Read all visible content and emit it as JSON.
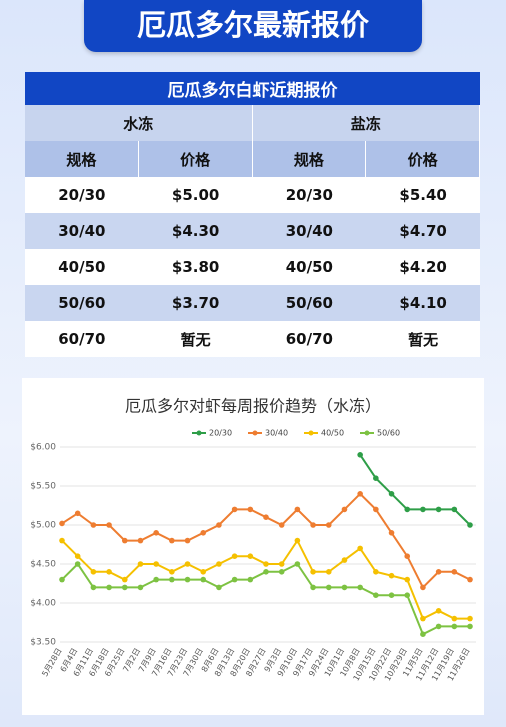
{
  "header": {
    "title": "厄瓜多尔最新报价"
  },
  "table": {
    "title": "厄瓜多尔白虾近期报价",
    "groups": [
      "水冻",
      "盐冻"
    ],
    "columns": [
      "规格",
      "价格",
      "规格",
      "价格"
    ],
    "rows": [
      [
        "20/30",
        "$5.00",
        "20/30",
        "$5.40"
      ],
      [
        "30/40",
        "$4.30",
        "30/40",
        "$4.70"
      ],
      [
        "40/50",
        "$3.80",
        "40/50",
        "$4.20"
      ],
      [
        "50/60",
        "$3.70",
        "50/60",
        "$4.10"
      ],
      [
        "60/70",
        "暂无",
        "60/70",
        "暂无"
      ]
    ]
  },
  "chart_data": {
    "type": "line",
    "title": "厄瓜多尔对虾每周报价趋势（水冻）",
    "categories": [
      "5月28日",
      "6月4日",
      "6月11日",
      "6月18日",
      "6月25日",
      "7月2日",
      "7月9日",
      "7月16日",
      "7月23日",
      "7月30日",
      "8月6日",
      "8月13日",
      "8月20日",
      "8月27日",
      "9月3日",
      "9月10日",
      "9月17日",
      "9月24日",
      "10月1日",
      "10月8日",
      "10月15日",
      "10月22日",
      "10月29日",
      "11月5日",
      "11月12日",
      "11月19日",
      "11月26日"
    ],
    "series": [
      {
        "name": "20/30",
        "color": "#2e9e48",
        "values": [
          null,
          null,
          null,
          null,
          null,
          null,
          null,
          null,
          null,
          null,
          null,
          null,
          null,
          null,
          null,
          null,
          null,
          null,
          null,
          5.9,
          5.6,
          5.4,
          5.2,
          5.2,
          5.2,
          5.2,
          5.0
        ]
      },
      {
        "name": "30/40",
        "color": "#ee7d31",
        "values": [
          5.02,
          5.15,
          5.0,
          5.0,
          4.8,
          4.8,
          4.9,
          4.8,
          4.8,
          4.9,
          5.0,
          5.2,
          5.2,
          5.1,
          5.0,
          5.2,
          5.0,
          5.0,
          5.2,
          5.4,
          5.2,
          4.9,
          4.6,
          4.2,
          4.4,
          4.4,
          4.3
        ]
      },
      {
        "name": "40/50",
        "color": "#f5c000",
        "values": [
          4.8,
          4.6,
          4.4,
          4.4,
          4.3,
          4.5,
          4.5,
          4.4,
          4.5,
          4.4,
          4.5,
          4.6,
          4.6,
          4.5,
          4.5,
          4.8,
          4.4,
          4.4,
          4.55,
          4.7,
          4.4,
          4.35,
          4.3,
          3.8,
          3.9,
          3.8,
          3.8
        ]
      },
      {
        "name": "50/60",
        "color": "#7dc242",
        "values": [
          4.3,
          4.5,
          4.2,
          4.2,
          4.2,
          4.2,
          4.3,
          4.3,
          4.3,
          4.3,
          4.2,
          4.3,
          4.3,
          4.4,
          4.4,
          4.5,
          4.2,
          4.2,
          4.2,
          4.2,
          4.1,
          4.1,
          4.1,
          3.6,
          3.7,
          3.7,
          3.7
        ]
      }
    ],
    "ylim": [
      3.5,
      6.0
    ],
    "yticks": [
      {
        "value": 3.5,
        "label": "$3.50"
      },
      {
        "value": 4.0,
        "label": "$4.00"
      },
      {
        "value": 4.5,
        "label": "$4.50"
      },
      {
        "value": 5.0,
        "label": "$5.00"
      },
      {
        "value": 5.5,
        "label": "$5.50"
      },
      {
        "value": 6.0,
        "label": "$6.00"
      }
    ],
    "grid": true,
    "legend": "top"
  }
}
